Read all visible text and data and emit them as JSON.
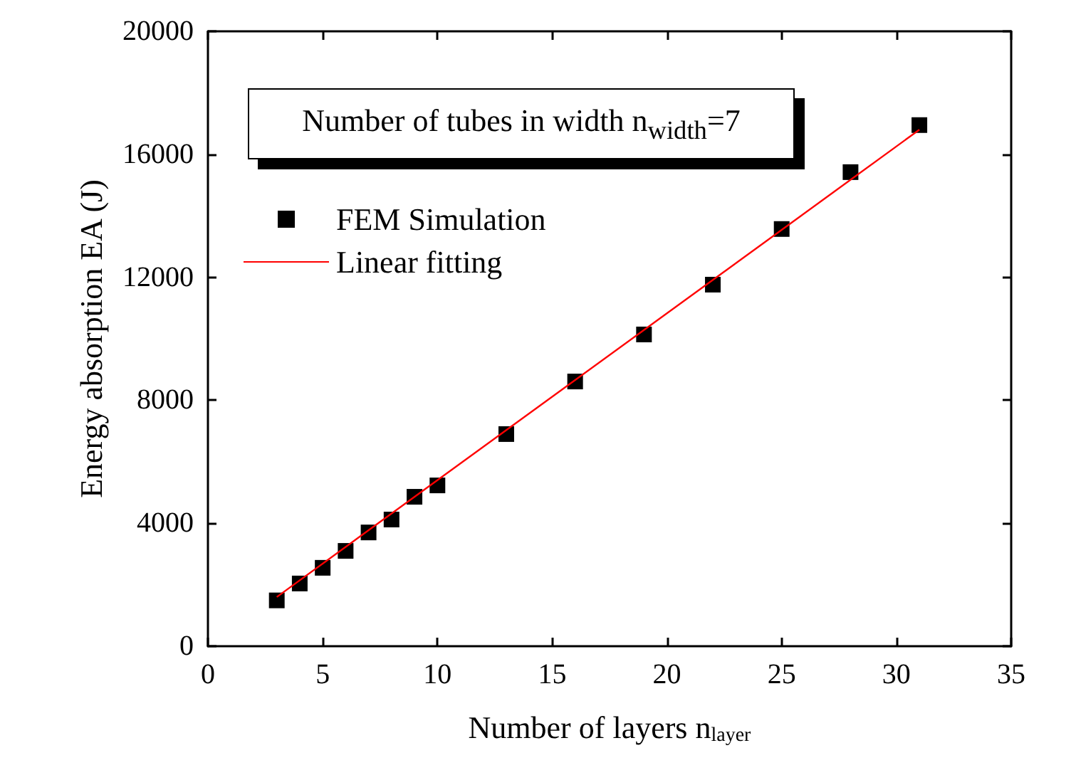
{
  "chart_data": {
    "type": "scatter",
    "xlabel": "Number of layers n$_{layer}$",
    "ylabel": "Energy absorption EA (J)",
    "annotations": [
      "Number of tubes in width n$_{width}$=7"
    ],
    "xlim": [
      0,
      35
    ],
    "xticks": [
      0,
      5,
      10,
      15,
      20,
      25,
      30,
      35
    ],
    "ylim": [
      0,
      20000
    ],
    "yticks": [
      0,
      4000,
      8000,
      12000,
      16000,
      20000
    ],
    "grid": false,
    "legend": "top left",
    "marker": "square",
    "series": [
      {
        "name": "FEM Simulation",
        "color": "#000000",
        "x": [
          3,
          4,
          5,
          6,
          7,
          8,
          9,
          10,
          13,
          16,
          19,
          22,
          25,
          28,
          31
        ],
        "values": [
          1490,
          2040,
          2550,
          3100,
          3700,
          4120,
          4860,
          5230,
          6900,
          8610,
          10140,
          11760,
          13570,
          15420,
          16950
        ]
      },
      {
        "name": "Linear fitting",
        "type": "line",
        "color": "#ff0000",
        "marker": "none",
        "line_style": "solid",
        "x": [
          3,
          31
        ],
        "values": [
          1600,
          16800
        ]
      }
    ]
  }
}
